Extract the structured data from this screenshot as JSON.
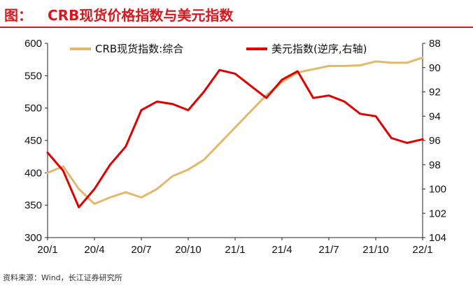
{
  "header": {
    "prefix": "图：",
    "title": "CRB现货价格指数与美元指数"
  },
  "source": "资料来源：Wind，长江证券研究所",
  "colors": {
    "accent": "#d8181e",
    "crb_line": "#e2b86d",
    "usd_line": "#e00000"
  },
  "chart_data": {
    "type": "line",
    "title": "CRB现货价格指数与美元指数",
    "x": [
      "2020-01",
      "2020-02",
      "2020-03",
      "2020-04",
      "2020-05",
      "2020-06",
      "2020-07",
      "2020-08",
      "2020-09",
      "2020-10",
      "2020-11",
      "2020-12",
      "2021-01",
      "2021-02",
      "2021-03",
      "2021-04",
      "2021-05",
      "2021-06",
      "2021-07",
      "2021-08",
      "2021-09",
      "2021-10",
      "2021-11",
      "2021-12",
      "2022-01"
    ],
    "x_ticks": [
      "20/1",
      "20/4",
      "20/7",
      "20/10",
      "21/1",
      "21/4",
      "21/7",
      "21/10",
      "22/1"
    ],
    "series": [
      {
        "name": "CRB现货指数:综合",
        "axis": "left",
        "values": [
          400,
          410,
          375,
          352,
          362,
          370,
          362,
          375,
          395,
          405,
          420,
          445,
          470,
          495,
          520,
          540,
          555,
          560,
          565,
          565,
          566,
          572,
          570,
          570,
          578
        ]
      },
      {
        "name": "美元指数(逆序,右轴)",
        "axis": "right",
        "values": [
          97.0,
          98.5,
          101.5,
          100.0,
          98.0,
          96.5,
          93.5,
          92.8,
          93.0,
          93.5,
          92.0,
          90.2,
          90.5,
          91.5,
          92.5,
          91.0,
          90.3,
          92.5,
          92.3,
          92.8,
          93.8,
          94.0,
          95.8,
          96.2,
          95.9
        ]
      }
    ],
    "y_left": {
      "ylim": [
        300,
        600
      ],
      "ticks": [
        "300",
        "350",
        "400",
        "450",
        "500",
        "550",
        "600"
      ]
    },
    "y_right": {
      "ylim": [
        88,
        104
      ],
      "inverted": true,
      "ticks": [
        "88",
        "90",
        "92",
        "94",
        "96",
        "98",
        "100",
        "102",
        "104"
      ]
    },
    "legend": "top",
    "grid": false
  }
}
